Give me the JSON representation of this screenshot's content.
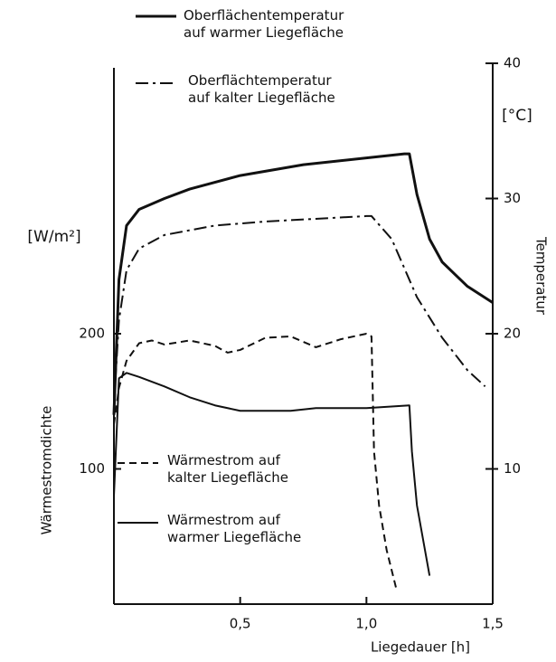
{
  "chart_data": {
    "type": "line",
    "x_label": "Liegedauer [h]",
    "y_label": "Wärmestromdichte",
    "y_unit": "[W/m²]",
    "y2_label": "Temperatur",
    "y2_unit": "[°C]",
    "xlim": [
      0,
      1.5
    ],
    "xticks": [
      {
        "value": 0.5,
        "label": "0,5"
      },
      {
        "value": 1.0,
        "label": "1,0"
      },
      {
        "value": 1.5,
        "label": "1,5"
      }
    ],
    "ylim": [
      0,
      400
    ],
    "yticks": [
      100,
      200
    ],
    "y2lim": [
      0,
      40
    ],
    "y2ticks": [
      10,
      20,
      30,
      40
    ],
    "grid": false,
    "series": [
      {
        "name": "Oberflächentemperatur\nauf warmer Liegefläche",
        "color": "#111111",
        "style": "solid-thick",
        "axis": "y2",
        "x": [
          0,
          0.02,
          0.05,
          0.1,
          0.2,
          0.3,
          0.5,
          0.75,
          1.0,
          1.15,
          1.17,
          1.2,
          1.25,
          1.3,
          1.4,
          1.5
        ],
        "values": [
          14,
          24,
          28,
          29.2,
          30,
          30.7,
          31.7,
          32.5,
          33,
          33.3,
          33.3,
          30.3,
          27,
          25.3,
          23.5,
          22.3
        ]
      },
      {
        "name": "Oberflächtemperatur\nauf kalter Liegefläche",
        "color": "#111111",
        "style": "dashdot",
        "axis": "y2",
        "x": [
          0,
          0.02,
          0.05,
          0.1,
          0.2,
          0.4,
          0.6,
          1.0,
          1.02,
          1.1,
          1.2,
          1.3,
          1.4,
          1.47
        ],
        "values": [
          14.7,
          21,
          24.7,
          26.3,
          27.3,
          28,
          28.3,
          28.7,
          28.7,
          27,
          22.7,
          19.7,
          17.3,
          16.1
        ]
      },
      {
        "name": "Wärmestrom auf\nkalter Liegefläche",
        "color": "#111111",
        "style": "dashed",
        "axis": "y",
        "x": [
          0,
          0.02,
          0.05,
          0.1,
          0.15,
          0.2,
          0.3,
          0.4,
          0.45,
          0.5,
          0.6,
          0.7,
          0.8,
          0.9,
          1.0,
          1.02,
          1.03,
          1.05,
          1.08,
          1.12
        ],
        "values": [
          133,
          160,
          180,
          193,
          195,
          192,
          195,
          191,
          186,
          188,
          197,
          198,
          190,
          196,
          200,
          198,
          113,
          73,
          40,
          10
        ]
      },
      {
        "name": "Wärmestrom auf\nwarmer Liegefläche",
        "color": "#111111",
        "style": "solid",
        "axis": "y",
        "x": [
          0,
          0.02,
          0.05,
          0.1,
          0.2,
          0.3,
          0.4,
          0.5,
          0.7,
          0.8,
          1.0,
          1.17,
          1.18,
          1.2,
          1.25
        ],
        "values": [
          80,
          167,
          171,
          168,
          161,
          153,
          147,
          143,
          143,
          145,
          145,
          147,
          113,
          73,
          21
        ]
      }
    ]
  }
}
